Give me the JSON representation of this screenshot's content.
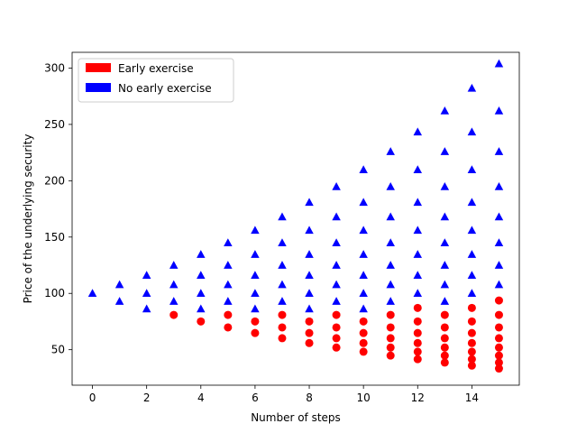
{
  "chart_data": {
    "type": "scatter",
    "title": "",
    "xlabel": "Number of steps",
    "ylabel": "Price of the underlying security",
    "xlim": [
      -0.75,
      15.75
    ],
    "ylim": [
      18.5,
      314
    ],
    "xticks": [
      0,
      2,
      4,
      6,
      8,
      10,
      12,
      14
    ],
    "yticks": [
      50,
      100,
      150,
      200,
      250,
      300
    ],
    "grid": false,
    "legend_position": "top-left",
    "series": [
      {
        "name": "Early exercise",
        "color": "#ff0000",
        "marker": "circle",
        "points": [
          [
            3,
            80.9
          ],
          [
            4,
            75.1
          ],
          [
            5,
            80.9
          ],
          [
            5,
            69.8
          ],
          [
            6,
            75.1
          ],
          [
            6,
            64.8
          ],
          [
            7,
            80.9
          ],
          [
            7,
            69.8
          ],
          [
            7,
            60.2
          ],
          [
            8,
            75.1
          ],
          [
            8,
            64.8
          ],
          [
            8,
            55.9
          ],
          [
            9,
            80.9
          ],
          [
            9,
            69.8
          ],
          [
            9,
            60.2
          ],
          [
            9,
            51.9
          ],
          [
            10,
            75.1
          ],
          [
            10,
            64.8
          ],
          [
            10,
            55.9
          ],
          [
            10,
            48.2
          ],
          [
            11,
            80.9
          ],
          [
            11,
            69.8
          ],
          [
            11,
            60.2
          ],
          [
            11,
            51.9
          ],
          [
            11,
            44.8
          ],
          [
            12,
            87.1
          ],
          [
            12,
            75.1
          ],
          [
            12,
            64.8
          ],
          [
            12,
            55.9
          ],
          [
            12,
            48.2
          ],
          [
            12,
            41.6
          ],
          [
            13,
            80.9
          ],
          [
            13,
            69.8
          ],
          [
            13,
            60.2
          ],
          [
            13,
            51.9
          ],
          [
            13,
            44.8
          ],
          [
            13,
            38.6
          ],
          [
            14,
            87.1
          ],
          [
            14,
            75.1
          ],
          [
            14,
            64.8
          ],
          [
            14,
            55.9
          ],
          [
            14,
            48.2
          ],
          [
            14,
            41.6
          ],
          [
            14,
            35.9
          ],
          [
            15,
            93.7
          ],
          [
            15,
            80.9
          ],
          [
            15,
            69.8
          ],
          [
            15,
            60.2
          ],
          [
            15,
            51.9
          ],
          [
            15,
            44.8
          ],
          [
            15,
            38.6
          ],
          [
            15,
            33.3
          ]
        ]
      },
      {
        "name": "No early exercise",
        "color": "#0000ff",
        "marker": "triangle",
        "points": [
          [
            0,
            100
          ],
          [
            1,
            107.7
          ],
          [
            1,
            92.9
          ],
          [
            2,
            116.0
          ],
          [
            2,
            100
          ],
          [
            2,
            86.2
          ],
          [
            3,
            124.9
          ],
          [
            3,
            107.7
          ],
          [
            3,
            92.9
          ],
          [
            4,
            134.5
          ],
          [
            4,
            116.0
          ],
          [
            4,
            100
          ],
          [
            4,
            86.2
          ],
          [
            5,
            144.8
          ],
          [
            5,
            124.9
          ],
          [
            5,
            107.7
          ],
          [
            5,
            92.9
          ],
          [
            6,
            155.9
          ],
          [
            6,
            134.5
          ],
          [
            6,
            116.0
          ],
          [
            6,
            100
          ],
          [
            6,
            86.2
          ],
          [
            7,
            167.9
          ],
          [
            7,
            144.8
          ],
          [
            7,
            124.9
          ],
          [
            7,
            107.7
          ],
          [
            7,
            92.9
          ],
          [
            8,
            180.8
          ],
          [
            8,
            155.9
          ],
          [
            8,
            134.5
          ],
          [
            8,
            116.0
          ],
          [
            8,
            100
          ],
          [
            8,
            86.2
          ],
          [
            9,
            194.7
          ],
          [
            9,
            167.9
          ],
          [
            9,
            144.8
          ],
          [
            9,
            124.9
          ],
          [
            9,
            107.7
          ],
          [
            9,
            92.9
          ],
          [
            10,
            209.7
          ],
          [
            10,
            180.8
          ],
          [
            10,
            155.9
          ],
          [
            10,
            134.5
          ],
          [
            10,
            116.0
          ],
          [
            10,
            100
          ],
          [
            10,
            86.2
          ],
          [
            11,
            225.8
          ],
          [
            11,
            194.7
          ],
          [
            11,
            167.9
          ],
          [
            11,
            144.8
          ],
          [
            11,
            124.9
          ],
          [
            11,
            107.7
          ],
          [
            11,
            92.9
          ],
          [
            12,
            243.2
          ],
          [
            12,
            209.7
          ],
          [
            12,
            180.8
          ],
          [
            12,
            155.9
          ],
          [
            12,
            134.5
          ],
          [
            12,
            116.0
          ],
          [
            12,
            100
          ],
          [
            13,
            261.9
          ],
          [
            13,
            225.8
          ],
          [
            13,
            194.7
          ],
          [
            13,
            167.9
          ],
          [
            13,
            144.8
          ],
          [
            13,
            124.9
          ],
          [
            13,
            107.7
          ],
          [
            13,
            92.9
          ],
          [
            14,
            282.1
          ],
          [
            14,
            243.2
          ],
          [
            14,
            209.7
          ],
          [
            14,
            180.8
          ],
          [
            14,
            155.9
          ],
          [
            14,
            134.5
          ],
          [
            14,
            116.0
          ],
          [
            14,
            100
          ],
          [
            15,
            303.8
          ],
          [
            15,
            261.9
          ],
          [
            15,
            225.8
          ],
          [
            15,
            194.7
          ],
          [
            15,
            167.9
          ],
          [
            15,
            144.8
          ],
          [
            15,
            124.9
          ],
          [
            15,
            107.7
          ]
        ]
      }
    ]
  }
}
